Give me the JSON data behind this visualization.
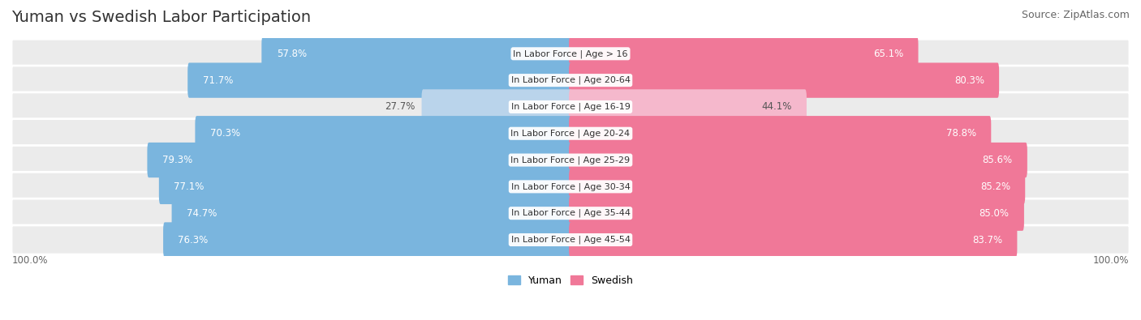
{
  "title": "Yuman vs Swedish Labor Participation",
  "source": "Source: ZipAtlas.com",
  "categories": [
    "In Labor Force | Age > 16",
    "In Labor Force | Age 20-64",
    "In Labor Force | Age 16-19",
    "In Labor Force | Age 20-24",
    "In Labor Force | Age 25-29",
    "In Labor Force | Age 30-34",
    "In Labor Force | Age 35-44",
    "In Labor Force | Age 45-54"
  ],
  "yuman_values": [
    57.8,
    71.7,
    27.7,
    70.3,
    79.3,
    77.1,
    74.7,
    76.3
  ],
  "swedish_values": [
    65.1,
    80.3,
    44.1,
    78.8,
    85.6,
    85.2,
    85.0,
    83.7
  ],
  "yuman_color_strong": "#7ab5de",
  "yuman_color_light": "#bad4eb",
  "swedish_color_strong": "#f07898",
  "swedish_color_light": "#f5b8cc",
  "row_bg_color": "#ebebeb",
  "title_fontsize": 14,
  "source_fontsize": 9,
  "bar_label_fontsize": 8.5,
  "category_fontsize": 8,
  "legend_fontsize": 9,
  "axis_label_fontsize": 8.5
}
